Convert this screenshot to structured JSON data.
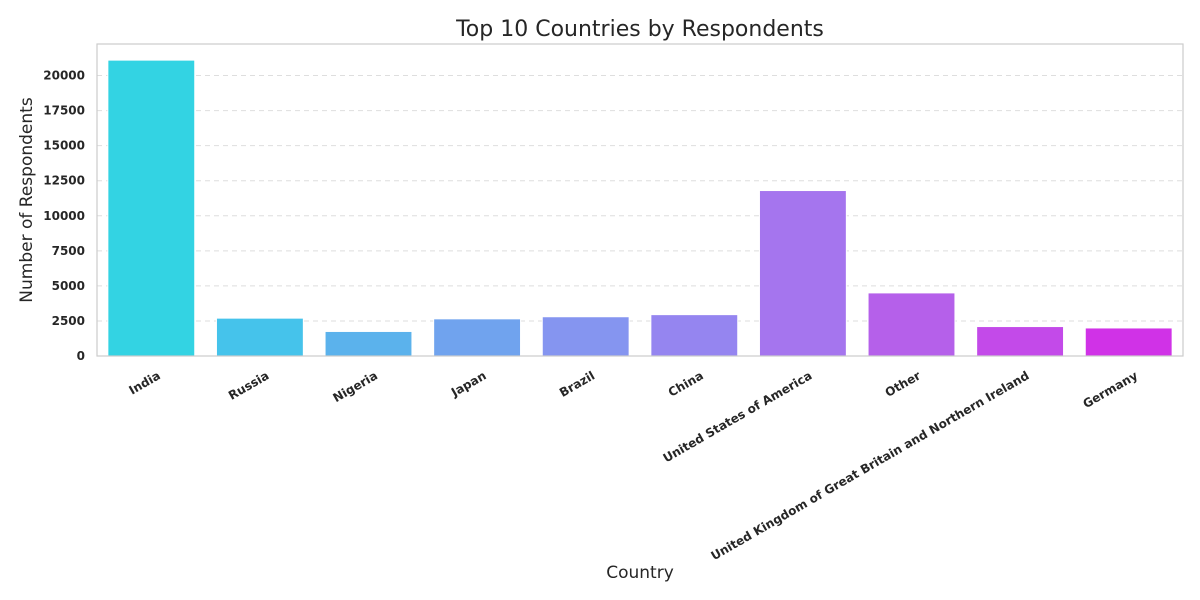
{
  "chart_data": {
    "type": "bar",
    "title": "Top 10 Countries by Respondents",
    "xlabel": "Country",
    "ylabel": "Number of Respondents",
    "categories": [
      "India",
      "Russia",
      "Nigeria",
      "Japan",
      "Brazil",
      "China",
      "United States of America",
      "Other",
      "United Kingdom of Great Britain and Northern Ireland",
      "Germany"
    ],
    "values": [
      21100,
      2700,
      1750,
      2650,
      2800,
      2950,
      11800,
      4500,
      2100,
      2000
    ],
    "colors": [
      "#33d3e3",
      "#45c3eb",
      "#5bb2ec",
      "#70a3ee",
      "#8595f0",
      "#9585f0",
      "#a575ee",
      "#b560ea",
      "#c34ae9",
      "#d032e7"
    ],
    "yticks": [
      0,
      2500,
      5000,
      7500,
      10000,
      12500,
      15000,
      17500,
      20000
    ],
    "ylim": [
      0,
      22250
    ],
    "grid": true,
    "grid_style": "dashed",
    "legend": "none"
  }
}
